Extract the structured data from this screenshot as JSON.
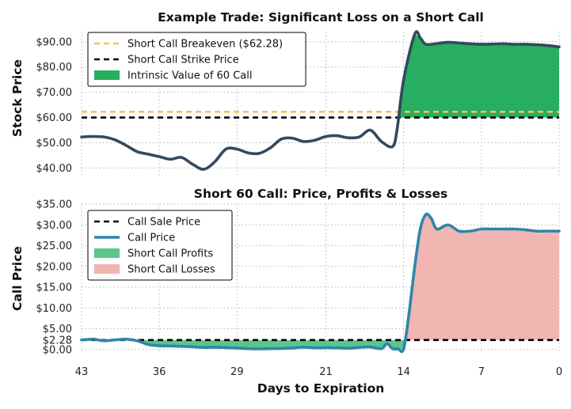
{
  "chart_data": [
    {
      "type": "line",
      "title": "Example Trade: Significant Loss on a Short Call",
      "xlabel": "",
      "ylabel": "Stock Price",
      "xlim": [
        43,
        0
      ],
      "ylim": [
        37,
        94
      ],
      "yticks": [
        40,
        50,
        60,
        70,
        80,
        90
      ],
      "ytick_labels": [
        "$40.00",
        "$50.00",
        "$60.00",
        "$70.00",
        "$80.00",
        "$90.00"
      ],
      "grid": true,
      "legend_position": "top-left",
      "legend": [
        {
          "label": "Short Call Breakeven ($62.28)",
          "color": "#f6c15b",
          "style": "dashed"
        },
        {
          "label": "Short Call Strike Price",
          "color": "#000000",
          "style": "dashed"
        },
        {
          "label": "Intrinsic Value of 60 Call",
          "color": "#27ae60",
          "style": "fill"
        }
      ],
      "hlines": [
        {
          "y": 62.28,
          "color": "#f6c15b"
        },
        {
          "y": 60,
          "color": "#000000"
        }
      ],
      "series": [
        {
          "color": "#34495e",
          "x": [
            43,
            42,
            41,
            40,
            39,
            38,
            37,
            36,
            35,
            34,
            33,
            32,
            31,
            30,
            29,
            28,
            27,
            26,
            25,
            24,
            23,
            22,
            21,
            20,
            19,
            18,
            17,
            16,
            15,
            14.6,
            14,
            13,
            12.5,
            12,
            11,
            10,
            9,
            8,
            7,
            6,
            5,
            4,
            3,
            2,
            1,
            0
          ],
          "y": [
            52.3,
            52.5,
            52.3,
            51.2,
            49,
            46.5,
            45.5,
            44.5,
            43.5,
            44.2,
            41.5,
            39.5,
            42.5,
            47.5,
            47.5,
            46,
            45.8,
            48,
            51.5,
            51.8,
            50.5,
            51,
            52.5,
            52.8,
            52,
            52.3,
            55,
            50.5,
            48.5,
            55,
            75,
            93,
            91.5,
            89,
            89.3,
            89.8,
            89.5,
            89.2,
            89,
            89.1,
            89.2,
            89,
            89,
            88.8,
            88.5,
            88
          ]
        }
      ],
      "fill": {
        "color": "#27ae60",
        "between": [
          60,
          "series"
        ],
        "where": "above"
      }
    },
    {
      "type": "line",
      "title": "Short 60 Call: Price, Profits & Losses",
      "xlabel": "Days to Expiration",
      "ylabel": "Call Price",
      "xlim": [
        43,
        0
      ],
      "ylim": [
        -0.8,
        35
      ],
      "xticks": [
        43,
        36,
        29,
        21,
        14,
        7,
        0
      ],
      "yticks": [
        0,
        2.28,
        5,
        10,
        15,
        20,
        25,
        30,
        35
      ],
      "ytick_labels": [
        "$0.00",
        "$2.28",
        "$5.00",
        "$10.00",
        "$15.00",
        "$20.00",
        "$25.00",
        "$30.00",
        "$35.00"
      ],
      "grid": true,
      "legend_position": "top-left",
      "legend": [
        {
          "label": "Call Sale Price",
          "color": "#000000",
          "style": "dashed"
        },
        {
          "label": "Call Price",
          "color": "#2e86ab",
          "style": "solid"
        },
        {
          "label": "Short Call Profits",
          "color": "#5cc48c",
          "style": "fill"
        },
        {
          "label": "Short Call Losses",
          "color": "#f1b5b2",
          "style": "fill"
        }
      ],
      "hlines": [
        {
          "y": 2.28,
          "color": "#000000"
        }
      ],
      "series": [
        {
          "color": "#2e86ab",
          "x": [
            43,
            42,
            41.5,
            41,
            40,
            39,
            38,
            37,
            36,
            35,
            34,
            33,
            32,
            31,
            30,
            29,
            28,
            27,
            26,
            25,
            24,
            23,
            22,
            21,
            20,
            19,
            18,
            17,
            16,
            15.5,
            15,
            14.5,
            14,
            13.5,
            13,
            12.5,
            12,
            11.5,
            11,
            10,
            9,
            8,
            7,
            6,
            5,
            4,
            3,
            2,
            1,
            0
          ],
          "y": [
            2.3,
            2.5,
            2.3,
            2.1,
            2.3,
            2.5,
            2.1,
            1.2,
            0.9,
            0.85,
            0.75,
            0.65,
            0.5,
            0.55,
            0.45,
            0.35,
            0.2,
            0.15,
            0.2,
            0.25,
            0.35,
            0.55,
            0.4,
            0.45,
            0.4,
            0.3,
            0.5,
            0.6,
            0.2,
            1.4,
            0.2,
            0.15,
            0.15,
            9,
            20,
            29,
            32.5,
            31.5,
            29,
            30,
            28.5,
            28.5,
            29,
            29,
            29,
            29,
            28.8,
            28.5,
            28.5,
            28.5
          ]
        }
      ],
      "fills": [
        {
          "color": "#5cc48c",
          "label": "Short Call Profits",
          "between": [
            "series",
            2.28
          ],
          "where": "below"
        },
        {
          "color": "#f1b5b2",
          "label": "Short Call Losses",
          "between": [
            2.28,
            "series"
          ],
          "where": "above"
        }
      ]
    }
  ]
}
